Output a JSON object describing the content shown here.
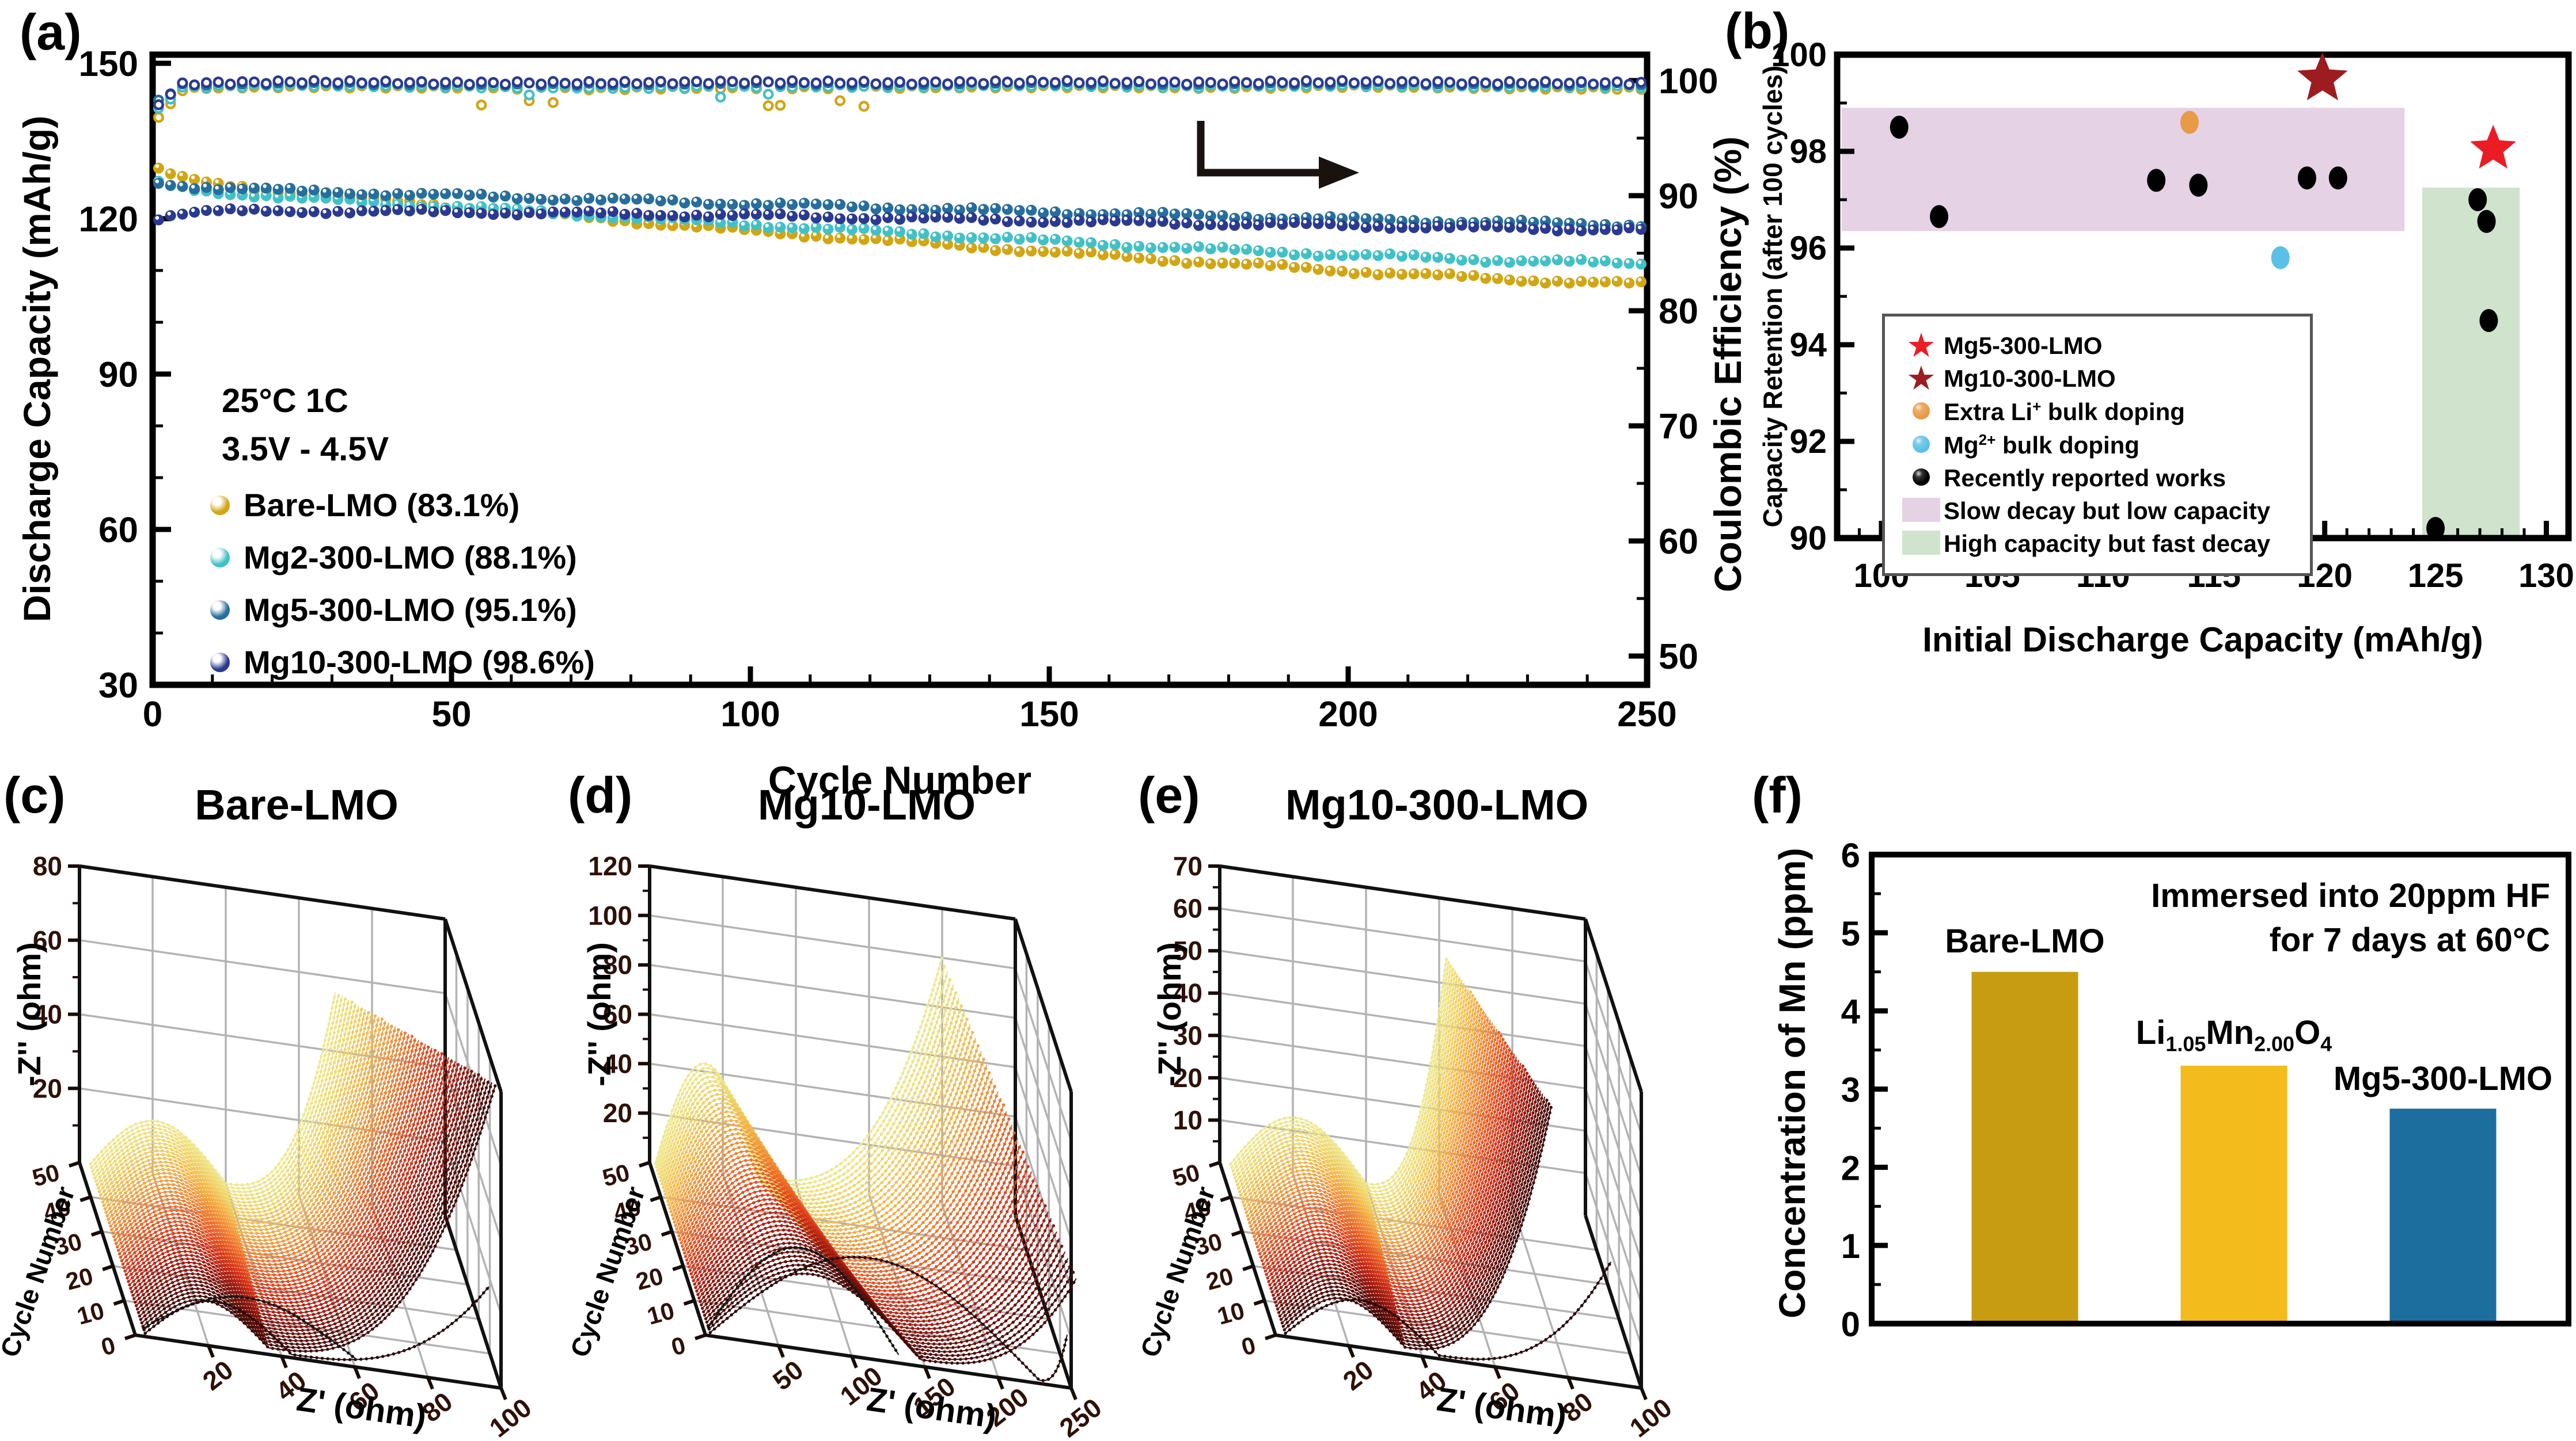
{
  "figure": {
    "background": "#ffffff"
  },
  "colors": {
    "waterfall_stops": [
      "#260808",
      "#5c0f0a",
      "#9c1a10",
      "#d23318",
      "#e95c24",
      "#f08a36",
      "#f2b348",
      "#efd468",
      "#efe88f"
    ],
    "grid": "#b3b3b3",
    "frame": "#111111",
    "tick_label_3d": "#2e1108"
  },
  "panels": {
    "a": {
      "label": "(a)",
      "x_label": "Cycle Number",
      "y_left_label": "Discharge Capacity (mAh/g)",
      "y_right_label": "Coulombic Efficiency (%)",
      "x_ticks": [
        0,
        50,
        100,
        150,
        200,
        250
      ],
      "y_left_ticks": [
        30,
        60,
        90,
        120,
        150
      ],
      "y_right_ticks": [
        50,
        60,
        70,
        80,
        90,
        100
      ],
      "annotation_lines": [
        "25°C 1C",
        "3.5V - 4.5V"
      ],
      "legend": [
        {
          "label": "Bare-LMO (83.1%)",
          "color": "#d2a513"
        },
        {
          "label": "Mg2-300-LMO (88.1%)",
          "color": "#41c1c7"
        },
        {
          "label": "Mg5-300-LMO (95.1%)",
          "color": "#266e9d"
        },
        {
          "label": "Mg10-300-LMO (98.6%)",
          "color": "#2b3a90"
        }
      ],
      "chart_data": {
        "type": "line",
        "x": [
          1,
          5,
          10,
          25,
          50,
          75,
          100,
          125,
          150,
          175,
          200,
          225,
          250
        ],
        "xlim": [
          0,
          250
        ],
        "ylim_left": [
          30,
          150
        ],
        "ylim_right": [
          50,
          100
        ],
        "series": [
          {
            "name": "Bare-LMO",
            "color": "#d2a513",
            "retention_pct": 83.1,
            "capacity": [
              129.5,
              127.8,
              126.6,
              124.9,
              122.4,
              120.0,
              117.6,
              115.6,
              113.6,
              111.7,
              109.9,
              108.4,
              107.3
            ],
            "coulombic_efficiency": [
              96.8,
              99.2,
              99.4,
              99.5,
              99.4,
              99.3,
              99.4,
              99.4,
              99.5,
              99.4,
              99.5,
              99.4,
              99.3
            ]
          },
          {
            "name": "Mg2-300-LMO",
            "color": "#41c1c7",
            "retention_pct": 88.1,
            "capacity": [
              126.8,
              125.9,
              125.2,
              123.9,
              122.3,
              120.6,
              118.9,
              117.3,
              115.7,
              114.2,
              113.0,
              112.0,
              111.3
            ],
            "coulombic_efficiency": [
              97.6,
              99.4,
              99.5,
              99.6,
              99.5,
              99.4,
              99.5,
              99.5,
              99.6,
              99.5,
              99.6,
              99.5,
              99.5
            ]
          },
          {
            "name": "Mg5-300-LMO",
            "color": "#266e9d",
            "retention_pct": 95.1,
            "capacity": [
              127.0,
              126.4,
              126.0,
              125.3,
              124.5,
              123.7,
              122.9,
              122.1,
              121.3,
              120.6,
              119.9,
              119.3,
              118.8
            ],
            "coulombic_efficiency": [
              98.3,
              99.6,
              99.7,
              99.8,
              99.7,
              99.7,
              99.8,
              99.7,
              99.8,
              99.7,
              99.8,
              99.7,
              99.7
            ]
          },
          {
            "name": "Mg10-300-LMO",
            "color": "#2b3a90",
            "retention_pct": 98.6,
            "capacity": [
              120.2,
              121.0,
              121.4,
              121.5,
              121.3,
              121.0,
              120.6,
              120.1,
              119.6,
              119.1,
              118.7,
              118.2,
              117.9
            ],
            "coulombic_efficiency": [
              97.9,
              99.7,
              99.8,
              99.9,
              99.8,
              99.8,
              99.9,
              99.8,
              99.9,
              99.8,
              99.9,
              99.8,
              99.8
            ]
          }
        ],
        "note": "Ring markers near 100% are coulombic efficiency (right axis); ball-marker curves are discharge capacity (left axis)."
      }
    },
    "b": {
      "label": "(b)",
      "x_label": "Initial Discharge Capacity (mAh/g)",
      "y_label": "Capacity Retention (after 100 cycles)",
      "x_ticks": [
        100,
        105,
        110,
        115,
        120,
        125,
        130
      ],
      "y_ticks": [
        90,
        92,
        94,
        96,
        98,
        100
      ],
      "legend": [
        {
          "marker": "star",
          "color": "#ec1c24",
          "parts": [
            {
              "t": "Mg5-300-LMO"
            }
          ]
        },
        {
          "marker": "star",
          "color": "#9c1c20",
          "parts": [
            {
              "t": "Mg10-300-LMO"
            }
          ]
        },
        {
          "marker": "ball",
          "color": "#e89a47",
          "parts": [
            {
              "t": "Extra Li"
            },
            {
              "sup": "+"
            },
            {
              "t": " bulk doping"
            }
          ]
        },
        {
          "marker": "ball",
          "color": "#5bc0e8",
          "parts": [
            {
              "t": "Mg"
            },
            {
              "sup": "2+"
            },
            {
              "t": " bulk doping"
            }
          ]
        },
        {
          "marker": "ball",
          "color": "#000000",
          "parts": [
            {
              "t": "Recently reported works"
            }
          ]
        },
        {
          "marker": "rect",
          "color": "#e5d2e4",
          "parts": [
            {
              "t": "Slow decay but low capacity"
            }
          ]
        },
        {
          "marker": "rect",
          "color": "#cfe3cd",
          "parts": [
            {
              "t": "High capacity but fast decay"
            }
          ]
        }
      ],
      "chart_data": {
        "type": "scatter",
        "xlim": [
          98,
          131
        ],
        "ylim": [
          90,
          100
        ],
        "series": [
          {
            "name": "Mg5-300-LMO",
            "marker": "star",
            "color": "#ec1c24",
            "points": [
              [
                127.6,
                98.05
              ]
            ]
          },
          {
            "name": "Mg10-300-LMO",
            "marker": "star",
            "color": "#9c1c20",
            "points": [
              [
                119.9,
                99.5
              ]
            ]
          },
          {
            "name": "Extra Li+ bulk doping",
            "marker": "circle",
            "color": "#e89a47",
            "points": [
              [
                113.9,
                98.6
              ]
            ]
          },
          {
            "name": "Mg2+ bulk doping",
            "marker": "circle",
            "color": "#5bc0e8",
            "points": [
              [
                118.0,
                95.8
              ]
            ]
          },
          {
            "name": "Recently reported works",
            "marker": "circle",
            "color": "#000000",
            "points": [
              [
                100.8,
                98.5
              ],
              [
                102.6,
                96.65
              ],
              [
                112.4,
                97.4
              ],
              [
                114.3,
                97.3
              ],
              [
                119.2,
                97.45
              ],
              [
                120.6,
                97.45
              ],
              [
                126.9,
                97.0
              ],
              [
                127.3,
                96.55
              ],
              [
                127.4,
                94.5
              ],
              [
                125.0,
                90.2
              ]
            ]
          }
        ],
        "regions": [
          {
            "name": "Slow decay but low capacity",
            "color": "#e5d2e4",
            "x": [
              98.2,
              123.6
            ],
            "y": [
              96.35,
              98.9
            ]
          },
          {
            "name": "High capacity but fast decay",
            "color": "#cfe3cd",
            "x": [
              124.4,
              128.8
            ],
            "y": [
              90.0,
              97.25
            ]
          }
        ]
      }
    },
    "c": {
      "label": "(c)",
      "title": "Bare-LMO",
      "chart_data": {
        "type": "3d-waterfall",
        "x_label": "Z' (ohm)",
        "y_label": "Cycle Number",
        "z_label": "-Z'' (ohm)",
        "x_max": 100,
        "x_ticks": [
          20,
          40,
          60,
          80,
          100
        ],
        "y_max": 50,
        "y_ticks": [
          0,
          10,
          20,
          30,
          40,
          50
        ],
        "z_max": 80,
        "z_ticks": [
          20,
          40,
          60,
          80
        ],
        "front_curve": {
          "start": 3,
          "diameter": 40,
          "arc_height": 12,
          "tail_end": 97,
          "tail_height": 26
        },
        "surface": {
          "start": 3,
          "diameter": [
            34,
            37
          ],
          "arc_height": [
            11,
            15
          ],
          "tail_end": [
            99,
            70
          ],
          "tail_height": [
            80,
            56
          ]
        },
        "black_curve": {
          "diameter": 58,
          "arc_height": 13
        },
        "description": "EIS Nyquist arcs for cycles 1-50: ~35 ohm semicircles with Warburg tails rising to the 80 ohm ceiling; color runs dark red (early cycles) to pale yellow (cycle 50)."
      }
    },
    "d": {
      "label": "(d)",
      "title": "Mg10-LMO",
      "chart_data": {
        "type": "3d-waterfall",
        "x_label": "Z' (ohm)",
        "y_label": "Cycle Number",
        "z_label": "-Z'' (ohm)",
        "x_max": 250,
        "x_ticks": [
          50,
          100,
          150,
          200,
          250
        ],
        "y_max": 50,
        "y_ticks": [
          0,
          10,
          20,
          30,
          40,
          50
        ],
        "z_max": 120,
        "z_ticks": [
          20,
          40,
          60,
          80,
          100,
          120
        ],
        "front_curve": {
          "start": 4,
          "diameter": 225,
          "arc_height": 42,
          "tail_end": 248,
          "tail_height": 20
        },
        "surface": {
          "start": 4,
          "diameter": [
            145,
            70
          ],
          "arc_height": [
            30,
            46
          ],
          "tail_end": [
            255,
            200
          ],
          "tail_height": [
            42,
            100
          ]
        },
        "black_curve": {
          "diameter": 130,
          "arc_height": 40
        },
        "description": "Large impedance arcs up to ~230 ohm at early cycles; tails fan out to 250 ohm reaching ~100 ohm height."
      }
    },
    "e": {
      "label": "(e)",
      "title": "Mg10-300-LMO",
      "chart_data": {
        "type": "3d-waterfall",
        "x_label": "Z' (ohm)",
        "y_label": "Cycle Number",
        "z_label": "-Z'' (ohm)",
        "x_max": 100,
        "x_ticks": [
          20,
          40,
          60,
          80,
          100
        ],
        "y_max": 50,
        "y_ticks": [
          0,
          10,
          20,
          30,
          40,
          50
        ],
        "z_max": 70,
        "z_ticks": [
          10,
          20,
          30,
          40,
          50,
          60,
          70
        ],
        "front_curve": {
          "start": 3,
          "diameter": 42,
          "arc_height": 11,
          "tail_end": 92,
          "tail_height": 28
        },
        "surface": {
          "start": 3,
          "diameter": [
            33,
            37
          ],
          "arc_height": [
            10,
            14
          ],
          "tail_end": [
            76,
            62
          ],
          "tail_height": [
            62,
            56
          ]
        },
        "description": "Compact ~35 ohm semicircles stable over 50 cycles with steep tails rising near 45-60 ohm."
      }
    },
    "f": {
      "label": "(f)",
      "y_label": "Concentration of Mn (ppm)",
      "annotation_lines": [
        "Immersed into 20ppm HF",
        "for 7 days at 60°C"
      ],
      "chart_data": {
        "type": "bar",
        "ylim": [
          0,
          6
        ],
        "y_ticks": [
          0,
          1,
          2,
          3,
          4,
          5,
          6
        ],
        "bars": [
          {
            "name": "Bare-LMO",
            "label_parts": [
              {
                "t": "Bare-LMO"
              }
            ],
            "value": 4.5,
            "color": "#c79c10"
          },
          {
            "name": "Li1.05Mn2.00O4",
            "label_parts": [
              {
                "t": "Li"
              },
              {
                "sub": "1.05"
              },
              {
                "t": "Mn"
              },
              {
                "sub": "2.00"
              },
              {
                "t": "O"
              },
              {
                "sub": "4"
              }
            ],
            "value": 3.3,
            "color": "#f3bb1b"
          },
          {
            "name": "Mg5-300-LMO",
            "label_parts": [
              {
                "t": "Mg5-300-LMO"
              }
            ],
            "value": 2.75,
            "color": "#1b6e9d"
          }
        ]
      }
    }
  }
}
